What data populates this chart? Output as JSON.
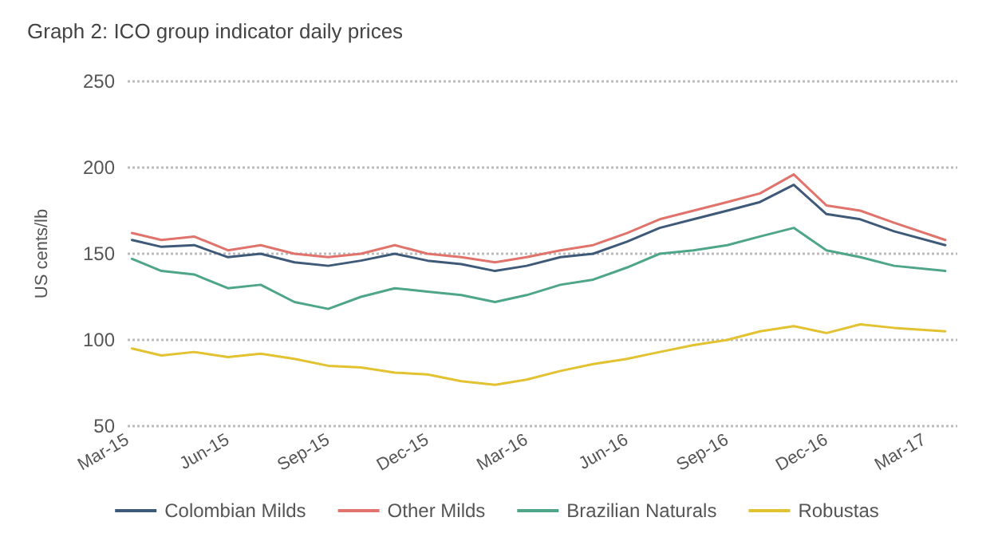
{
  "chart_data": {
    "type": "line",
    "title": "Graph 2: ICO group indicator daily prices",
    "ylabel": "US cents/lb",
    "x": [
      "2015-03-05",
      "2015-04-01",
      "2015-05-01",
      "2015-06-01",
      "2015-07-01",
      "2015-08-01",
      "2015-09-01",
      "2015-10-01",
      "2015-11-01",
      "2015-12-01",
      "2016-01-01",
      "2016-02-01",
      "2016-03-01",
      "2016-04-01",
      "2016-05-01",
      "2016-06-01",
      "2016-07-01",
      "2016-08-01",
      "2016-09-01",
      "2016-10-01",
      "2016-11-01",
      "2016-12-01",
      "2017-01-01",
      "2017-02-01",
      "2017-03-20"
    ],
    "series": [
      {
        "name": "Colombian Milds",
        "color": "#3f5a78",
        "values": [
          158,
          154,
          155,
          148,
          150,
          145,
          143,
          146,
          150,
          146,
          144,
          140,
          143,
          148,
          150,
          157,
          165,
          170,
          175,
          180,
          190,
          173,
          170,
          163,
          155
        ]
      },
      {
        "name": "Other Milds",
        "color": "#e0736b",
        "values": [
          162,
          158,
          160,
          152,
          155,
          150,
          148,
          150,
          155,
          150,
          148,
          145,
          148,
          152,
          155,
          162,
          170,
          175,
          180,
          185,
          196,
          178,
          175,
          168,
          158
        ]
      },
      {
        "name": "Brazilian Naturals",
        "color": "#4ea58a",
        "values": [
          147,
          140,
          138,
          130,
          132,
          122,
          118,
          125,
          130,
          128,
          126,
          122,
          126,
          132,
          135,
          142,
          150,
          152,
          155,
          160,
          165,
          152,
          148,
          143,
          140
        ]
      },
      {
        "name": "Robustas",
        "color": "#e3c232",
        "values": [
          95,
          91,
          93,
          90,
          92,
          89,
          85,
          84,
          81,
          80,
          76,
          74,
          77,
          82,
          86,
          89,
          93,
          97,
          100,
          105,
          108,
          104,
          109,
          107,
          105
        ]
      }
    ],
    "xlim": [
      "2015-03-01",
      "2017-03-31"
    ],
    "xticks": [
      {
        "value": "2015-03-01",
        "label": "Mar-15"
      },
      {
        "value": "2015-06-01",
        "label": "Jun-15"
      },
      {
        "value": "2015-09-01",
        "label": "Sep-15"
      },
      {
        "value": "2015-12-01",
        "label": "Dec-15"
      },
      {
        "value": "2016-03-01",
        "label": "Mar-16"
      },
      {
        "value": "2016-06-01",
        "label": "Jun-16"
      },
      {
        "value": "2016-09-01",
        "label": "Sep-16"
      },
      {
        "value": "2016-12-01",
        "label": "Dec-16"
      },
      {
        "value": "2017-03-01",
        "label": "Mar-17"
      }
    ],
    "ylim": [
      50,
      250
    ],
    "yticks": [
      50,
      100,
      150,
      200,
      250
    ],
    "grid": "y",
    "legend": "bottom",
    "marker": "none",
    "line_style": "solid"
  }
}
